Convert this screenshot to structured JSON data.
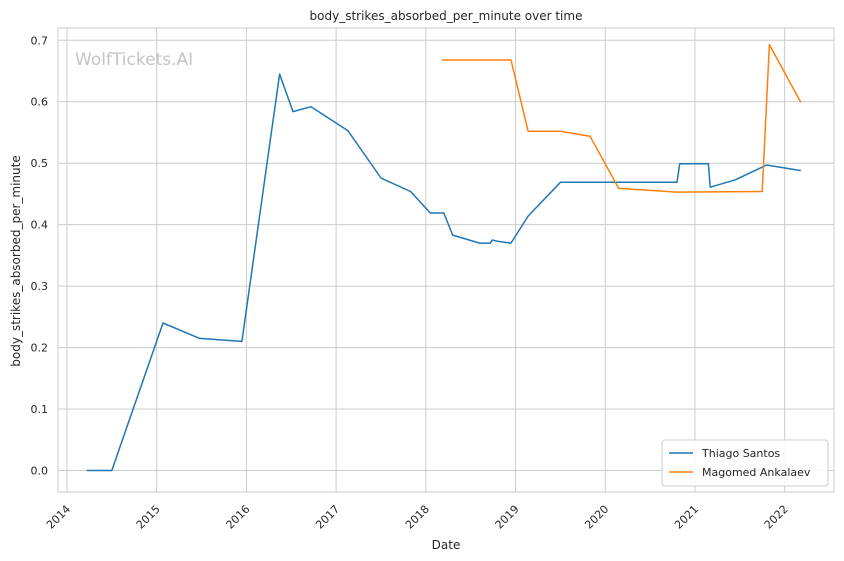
{
  "chart_data": {
    "type": "line",
    "title": "body_strikes_absorbed_per_minute over time",
    "xlabel": "Date",
    "ylabel": "body_strikes_absorbed_per_minute",
    "watermark": "WolfTickets.AI",
    "xlim": [
      2013.9,
      2022.55
    ],
    "ylim": [
      -0.035,
      0.72
    ],
    "x_ticks": [
      2014,
      2015,
      2016,
      2017,
      2018,
      2019,
      2020,
      2021,
      2022
    ],
    "x_tick_labels": [
      "2014",
      "2015",
      "2016",
      "2017",
      "2018",
      "2019",
      "2020",
      "2021",
      "2022"
    ],
    "y_ticks": [
      0.0,
      0.1,
      0.2,
      0.3,
      0.4,
      0.5,
      0.6,
      0.7
    ],
    "y_tick_labels": [
      "0.0",
      "0.1",
      "0.2",
      "0.3",
      "0.4",
      "0.5",
      "0.6",
      "0.7"
    ],
    "grid": true,
    "legend_position": "bottom-right",
    "series": [
      {
        "name": "Thiago Santos",
        "color": "#1f77b4",
        "x": [
          2014.22,
          2014.5,
          2015.07,
          2015.48,
          2015.95,
          2016.37,
          2016.52,
          2016.72,
          2017.13,
          2017.5,
          2017.83,
          2018.05,
          2018.2,
          2018.3,
          2018.6,
          2018.72,
          2018.74,
          2018.8,
          2018.95,
          2019.14,
          2019.5,
          2019.9,
          2020.3,
          2020.8,
          2020.83,
          2021.15,
          2021.17,
          2021.45,
          2021.8,
          2022.18
        ],
        "y": [
          0.0,
          0.0,
          0.24,
          0.215,
          0.21,
          0.645,
          0.584,
          0.592,
          0.553,
          0.476,
          0.454,
          0.419,
          0.419,
          0.383,
          0.37,
          0.37,
          0.375,
          0.373,
          0.37,
          0.414,
          0.469,
          0.469,
          0.469,
          0.469,
          0.499,
          0.499,
          0.461,
          0.473,
          0.497,
          0.488
        ]
      },
      {
        "name": "Magomed Ankalaev",
        "color": "#ff7f0e",
        "x": [
          2018.18,
          2018.95,
          2019.14,
          2019.5,
          2019.83,
          2020.15,
          2020.8,
          2021.75,
          2021.83,
          2022.18
        ],
        "y": [
          0.668,
          0.668,
          0.552,
          0.552,
          0.544,
          0.459,
          0.453,
          0.454,
          0.693,
          0.599
        ]
      }
    ]
  }
}
